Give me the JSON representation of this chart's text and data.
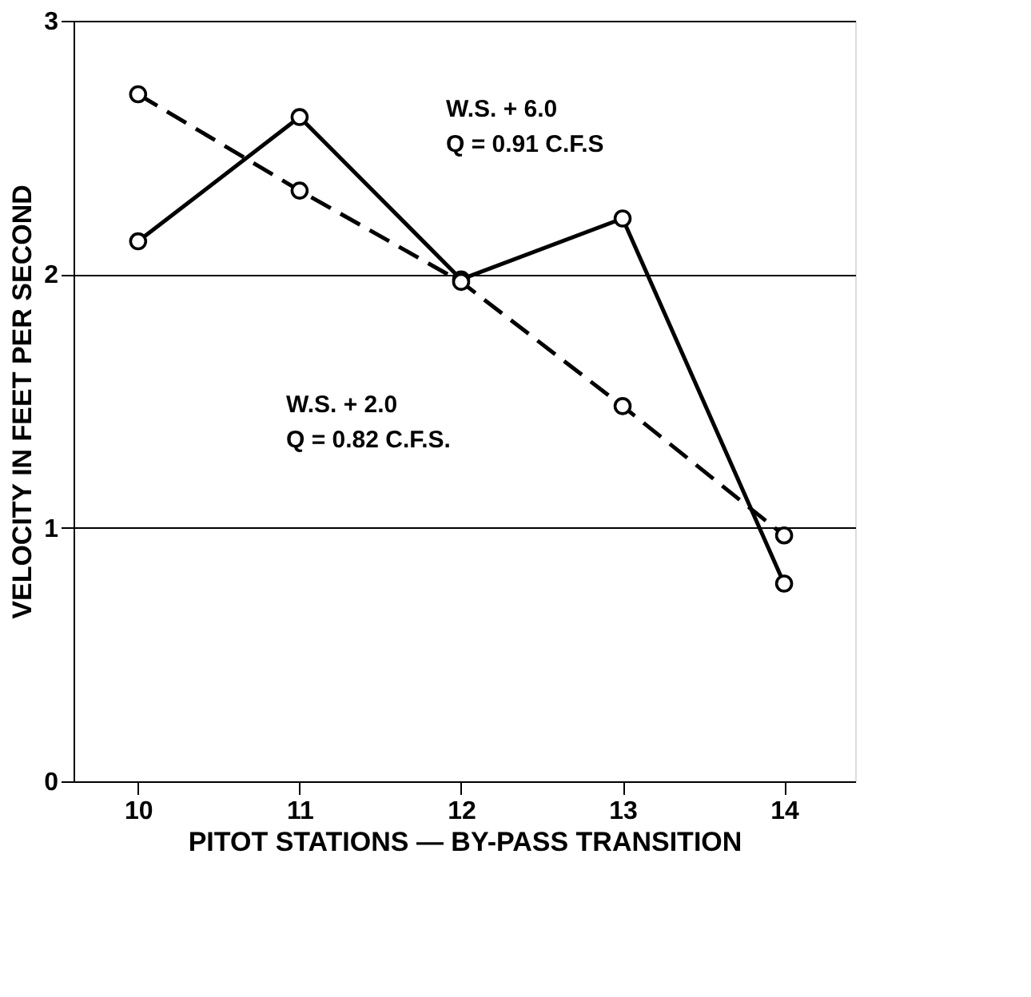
{
  "chart_data": {
    "type": "line",
    "xlabel": "PITOT STATIONS — BY-PASS TRANSITION",
    "ylabel": "VELOCITY IN FEET PER SECOND",
    "x": [
      10,
      11,
      12,
      13,
      14
    ],
    "series": [
      {
        "color": "#000000",
        "line_style": "solid",
        "values": [
          2.13,
          2.62,
          1.98,
          2.22,
          0.78
        ]
      },
      {
        "color": "#000000",
        "line_style": "dashed",
        "values": [
          2.71,
          2.33,
          1.97,
          1.48,
          0.97
        ]
      }
    ],
    "xlim": [
      9.6,
      14.44
    ],
    "xticks": [
      10,
      11,
      12,
      13,
      14
    ],
    "ylim": [
      0,
      3
    ],
    "yticks": [
      0,
      1,
      2,
      3
    ],
    "grid": "y",
    "marker": "circle",
    "annotations": [
      "W.S. + 6.0\nQ = 0.91  C.F.S",
      "W.S. + 2.0\nQ = 0.82  C.F.S."
    ]
  }
}
